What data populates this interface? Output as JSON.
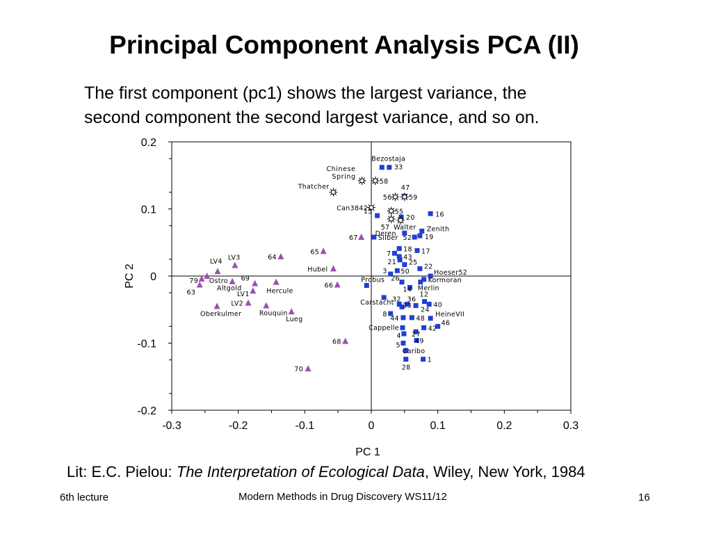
{
  "slide": {
    "title": "Principal Component Analysis PCA (II)",
    "text_line1": "The first component (pc1) shows the largest variance, the",
    "text_line2": "second component the second largest variance, and so on.",
    "lit_prefix": "Lit: E.C. Pielou: ",
    "lit_italic": "The Interpretation of Ecological Data",
    "lit_suffix": ", Wiley, New York, 1984",
    "footer_left": "6th lecture",
    "footer_center": "Modern Methods in Drug Discovery WS11/12",
    "footer_right": "16"
  },
  "chart_data": {
    "type": "scatter",
    "xlabel": "PC 1",
    "ylabel": "PC 2",
    "xlim": [
      -0.3,
      0.3
    ],
    "ylim": [
      -0.2,
      0.2
    ],
    "x_ticks": [
      "-0.3",
      "-0.2",
      "-0.1",
      "0",
      "0.1",
      "0.2",
      "0.3"
    ],
    "y_ticks": [
      "0.2",
      "0.1",
      "0",
      "-0.1",
      "-0.2"
    ],
    "colors": {
      "square": "#1f3fd6",
      "triangle": "#9b4fb5",
      "star": "#000000"
    },
    "series": [
      {
        "marker": "square",
        "points": [
          {
            "x": 0.016,
            "y": 0.162,
            "label": "Bezostaja"
          },
          {
            "x": 0.027,
            "y": 0.162,
            "label": "33"
          },
          {
            "x": 0.05,
            "y": 0.119,
            "label": "47"
          },
          {
            "x": 0.089,
            "y": 0.093,
            "label": "16"
          },
          {
            "x": 0.009,
            "y": 0.09,
            "label": "15"
          },
          {
            "x": 0.045,
            "y": 0.088,
            "label": "20"
          },
          {
            "x": 0.076,
            "y": 0.067,
            "label": "Zenith"
          },
          {
            "x": 0.05,
            "y": 0.064,
            "label": "Deren"
          },
          {
            "x": 0.073,
            "y": 0.06,
            "label": "19"
          },
          {
            "x": 0.004,
            "y": 0.058,
            "label": "Silber"
          },
          {
            "x": 0.065,
            "y": 0.058,
            "label": "52"
          },
          {
            "x": 0.042,
            "y": 0.041,
            "label": "18"
          },
          {
            "x": 0.069,
            "y": 0.038,
            "label": "17"
          },
          {
            "x": 0.035,
            "y": 0.034,
            "label": "7"
          },
          {
            "x": 0.042,
            "y": 0.029,
            "label": "43"
          },
          {
            "x": 0.043,
            "y": 0.024,
            "label": "21"
          },
          {
            "x": 0.05,
            "y": 0.017,
            "label": "25"
          },
          {
            "x": 0.073,
            "y": 0.011,
            "label": "22"
          },
          {
            "x": 0.039,
            "y": 0.008,
            "label": "50"
          },
          {
            "x": 0.029,
            "y": 0.003,
            "label": "3"
          },
          {
            "x": 0.089,
            "y": 0.0,
            "label": "Hoeser52"
          },
          {
            "x": 0.079,
            "y": -0.005,
            "label": "Kormoran"
          },
          {
            "x": -0.007,
            "y": -0.014,
            "label": "Probus"
          },
          {
            "x": 0.046,
            "y": -0.009,
            "label": "26"
          },
          {
            "x": 0.074,
            "y": -0.009,
            "label": "Merlin"
          },
          {
            "x": 0.058,
            "y": -0.017,
            "label": "14"
          },
          {
            "x": 0.019,
            "y": -0.032,
            "label": "Carstacht"
          },
          {
            "x": 0.042,
            "y": -0.042,
            "label": "32"
          },
          {
            "x": 0.054,
            "y": -0.042,
            "label": "36"
          },
          {
            "x": 0.08,
            "y": -0.038,
            "label": "12"
          },
          {
            "x": 0.087,
            "y": -0.042,
            "label": "40"
          },
          {
            "x": 0.067,
            "y": -0.044,
            "label": "23"
          },
          {
            "x": 0.046,
            "y": -0.046,
            "label": "24"
          },
          {
            "x": 0.029,
            "y": -0.056,
            "label": "8"
          },
          {
            "x": 0.048,
            "y": -0.062,
            "label": "44"
          },
          {
            "x": 0.061,
            "y": -0.062,
            "label": "48"
          },
          {
            "x": 0.089,
            "y": -0.063,
            "label": "HeineVII"
          },
          {
            "x": 0.047,
            "y": -0.077,
            "label": "Cappelle"
          },
          {
            "x": 0.079,
            "y": -0.077,
            "label": "42"
          },
          {
            "x": 0.1,
            "y": -0.075,
            "label": "46"
          },
          {
            "x": 0.049,
            "y": -0.086,
            "label": "4"
          },
          {
            "x": 0.067,
            "y": -0.083,
            "label": "27"
          },
          {
            "x": 0.048,
            "y": -0.1,
            "label": "5"
          },
          {
            "x": 0.068,
            "y": -0.096,
            "label": "49"
          },
          {
            "x": 0.052,
            "y": -0.111,
            "label": "Caribo"
          },
          {
            "x": 0.052,
            "y": -0.124,
            "label": "28"
          },
          {
            "x": 0.078,
            "y": -0.124,
            "label": "1"
          }
        ]
      },
      {
        "marker": "triangle",
        "points": [
          {
            "x": -0.015,
            "y": 0.058,
            "label": "67"
          },
          {
            "x": -0.072,
            "y": 0.037,
            "label": "65"
          },
          {
            "x": -0.136,
            "y": 0.029,
            "label": "64"
          },
          {
            "x": -0.205,
            "y": 0.016,
            "label": "LV3"
          },
          {
            "x": -0.057,
            "y": 0.011,
            "label": "Hubel"
          },
          {
            "x": -0.231,
            "y": 0.007,
            "label": "LV4"
          },
          {
            "x": -0.247,
            "y": 0.0,
            "label": "Ostro"
          },
          {
            "x": -0.255,
            "y": -0.004,
            "label": "79"
          },
          {
            "x": -0.209,
            "y": -0.008,
            "label": "Altgold"
          },
          {
            "x": -0.175,
            "y": -0.011,
            "label": "69"
          },
          {
            "x": -0.143,
            "y": -0.009,
            "label": "Hercule"
          },
          {
            "x": -0.258,
            "y": -0.013,
            "label": "63"
          },
          {
            "x": -0.178,
            "y": -0.022,
            "label": "LV1"
          },
          {
            "x": -0.051,
            "y": -0.013,
            "label": "66"
          },
          {
            "x": -0.185,
            "y": -0.04,
            "label": "LV2"
          },
          {
            "x": -0.232,
            "y": -0.045,
            "label": "Oberkulmer"
          },
          {
            "x": -0.158,
            "y": -0.044,
            "label": "Rouquin"
          },
          {
            "x": -0.12,
            "y": -0.053,
            "label": "Lueg"
          },
          {
            "x": -0.039,
            "y": -0.097,
            "label": "68"
          },
          {
            "x": -0.095,
            "y": -0.138,
            "label": "70"
          }
        ]
      },
      {
        "marker": "star",
        "points": [
          {
            "x": -0.014,
            "y": 0.142,
            "label": "Chinese Spring"
          },
          {
            "x": 0.006,
            "y": 0.142,
            "label": "58"
          },
          {
            "x": -0.057,
            "y": 0.125,
            "label": "Thatcher"
          },
          {
            "x": 0.036,
            "y": 0.118,
            "label": "56"
          },
          {
            "x": 0.05,
            "y": 0.118,
            "label": "59"
          },
          {
            "x": 0.0,
            "y": 0.102,
            "label": "Can3842"
          },
          {
            "x": 0.03,
            "y": 0.097,
            "label": "55"
          },
          {
            "x": 0.03,
            "y": 0.085,
            "label": "57"
          },
          {
            "x": 0.044,
            "y": 0.083,
            "label": "Walter"
          }
        ]
      }
    ]
  }
}
